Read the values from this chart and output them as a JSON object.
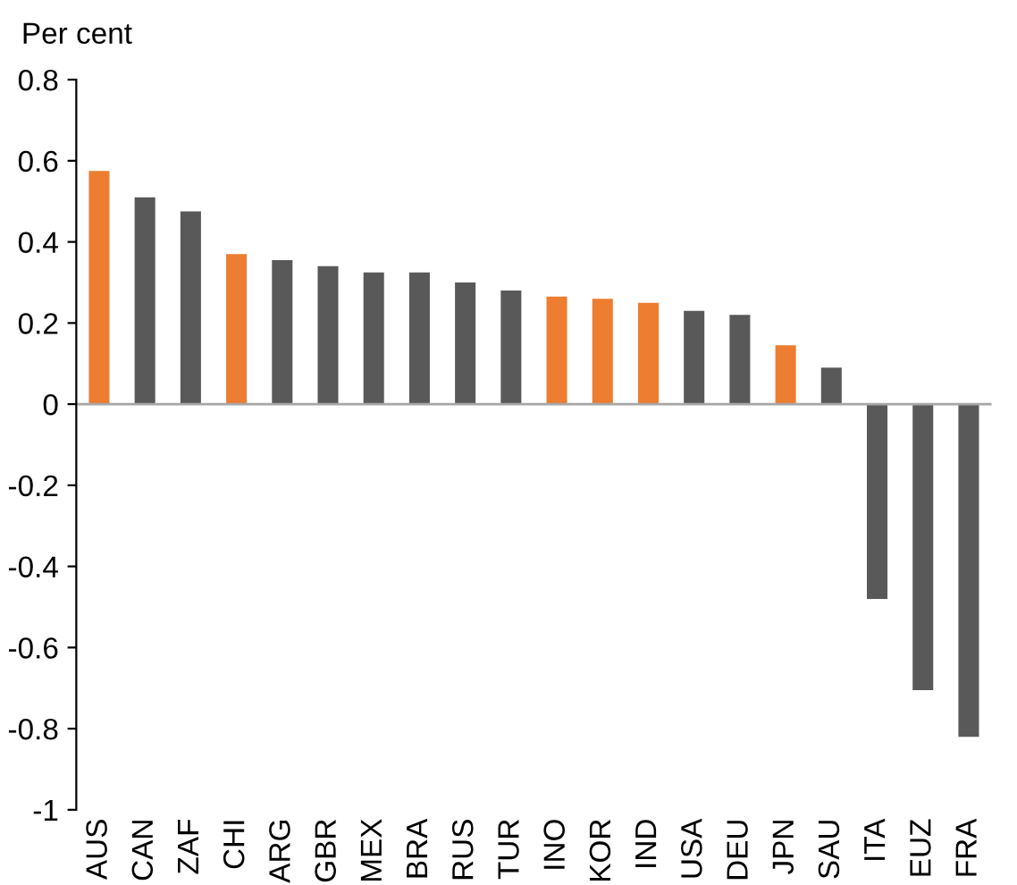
{
  "chart_data": {
    "type": "bar",
    "ylabel": "Per cent",
    "categories": [
      "AUS",
      "CAN",
      "ZAF",
      "CHI",
      "ARG",
      "GBR",
      "MEX",
      "BRA",
      "RUS",
      "TUR",
      "INO",
      "KOR",
      "IND",
      "USA",
      "DEU",
      "JPN",
      "SAU",
      "ITA",
      "EUZ",
      "FRA"
    ],
    "values": [
      0.575,
      0.51,
      0.475,
      0.37,
      0.355,
      0.34,
      0.325,
      0.325,
      0.3,
      0.28,
      0.265,
      0.26,
      0.25,
      0.23,
      0.22,
      0.145,
      0.09,
      -0.48,
      -0.705,
      -0.82
    ],
    "colors": [
      "#ed7d31",
      "#595959",
      "#595959",
      "#ed7d31",
      "#595959",
      "#595959",
      "#595959",
      "#595959",
      "#595959",
      "#595959",
      "#ed7d31",
      "#ed7d31",
      "#ed7d31",
      "#595959",
      "#595959",
      "#ed7d31",
      "#595959",
      "#595959",
      "#595959",
      "#595959"
    ],
    "ylim": [
      -1,
      0.8
    ],
    "yticks": [
      -1,
      -0.8,
      -0.6,
      -0.4,
      -0.2,
      0,
      0.2,
      0.4,
      0.6,
      0.8
    ],
    "ref_lines": [
      {
        "axis": "y",
        "value": 0,
        "color": "#a6a6a6"
      }
    ],
    "grid": false,
    "legend": false
  }
}
